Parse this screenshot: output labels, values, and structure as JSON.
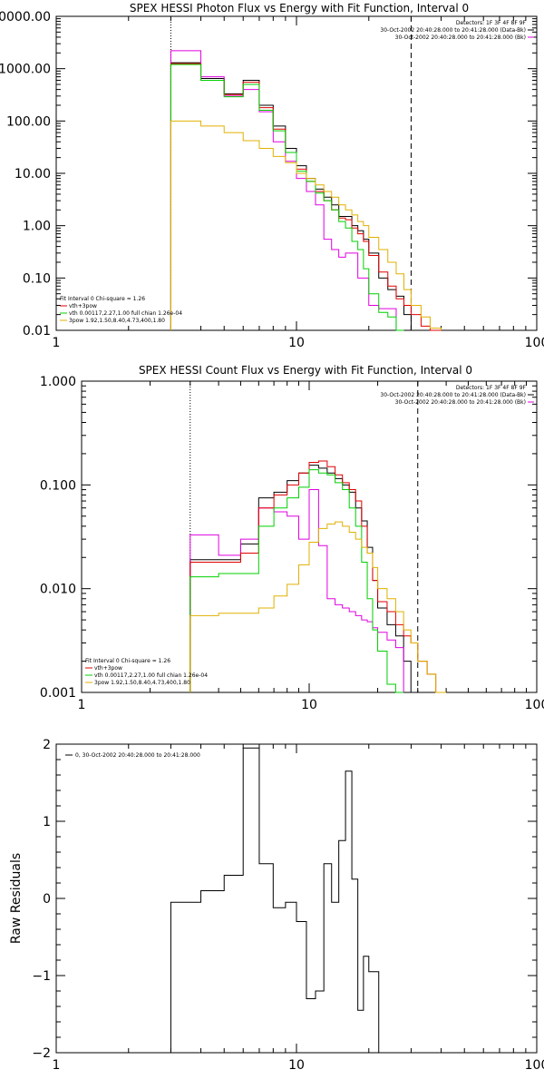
{
  "colors": {
    "black": "#000000",
    "red": "#e00000",
    "green": "#00d000",
    "magenta": "#e000e0",
    "yellow": "#e0b000"
  },
  "chart_data": [
    {
      "type": "line",
      "title": "SPEX HESSI Photon Flux vs Energy with Fit Function, Interval 0",
      "xscale": "log",
      "yscale": "log",
      "xlim": [
        1,
        100
      ],
      "ylim": [
        0.01,
        10000
      ],
      "x_ticks": [
        1,
        10,
        100
      ],
      "x_tick_labels": [
        "1",
        "10",
        "100"
      ],
      "y_ticks": [
        0.01,
        0.1,
        1,
        10,
        100,
        1000,
        10000
      ],
      "y_tick_labels": [
        "0.01",
        "0.10",
        "1.00",
        "10.00",
        "100.00",
        "1000.00",
        "10000.00"
      ],
      "ylabel": "",
      "xlabel": "",
      "fit_range_markers": [
        3,
        30
      ],
      "info_lines": [
        "Detectors: 1F 3F 4F 8F 9F",
        "30-Oct-2002 20:40:28.000 to 20:41:28.000 (Data-Bk)",
        "30-Oct-2002 20:40:28.000 to 20:41:28.000 (Bk)"
      ],
      "fit_lines": [
        "Fit Interval 0   Chi-square = 1.26",
        "vth+3pow",
        "vth 0.00117,2.27,1.00  full chian 1.26e-04",
        "3pow 1.92,1.50,8.40,4.73,400,1.80"
      ],
      "bin_edges": [
        3,
        4,
        5,
        6,
        7,
        8,
        9,
        10,
        11,
        12,
        13,
        14,
        15,
        16,
        17,
        18,
        19,
        20,
        22,
        24,
        26,
        28,
        30,
        33,
        36,
        40
      ],
      "series": [
        {
          "name": "Data-Bk",
          "color": "black",
          "values": [
            1300,
            650,
            330,
            600,
            200,
            80,
            30,
            14,
            8,
            5,
            3.5,
            2.5,
            1.5,
            1.5,
            1.0,
            0.8,
            0.55,
            0.3,
            0.1,
            0.06,
            0.045,
            0.02,
            0.008,
            null,
            null
          ]
        },
        {
          "name": "Bk",
          "color": "magenta",
          "values": [
            2200,
            700,
            300,
            400,
            150,
            40,
            17,
            8,
            4.5,
            2.5,
            0.55,
            0.35,
            0.25,
            0.3,
            0.3,
            0.1,
            0.1,
            0.03,
            0.026,
            0.026,
            null,
            null,
            null,
            null,
            null
          ]
        },
        {
          "name": "vth+3pow",
          "color": "red",
          "values": [
            1250,
            600,
            320,
            550,
            180,
            70,
            25,
            12,
            7,
            4.5,
            3,
            2,
            1.4,
            1.3,
            0.9,
            0.7,
            0.5,
            0.27,
            0.13,
            0.07,
            0.04,
            0.03,
            0.02,
            0.012,
            0.008
          ]
        },
        {
          "name": "vth 0.00117,2.27,1.00",
          "color": "green",
          "values": [
            1200,
            600,
            290,
            500,
            160,
            65,
            25,
            11,
            7,
            4.2,
            3,
            2,
            1.2,
            0.9,
            0.5,
            0.35,
            0.15,
            0.05,
            0.022,
            0.018,
            0.009,
            null,
            null,
            null,
            null
          ]
        },
        {
          "name": "3pow 1.92,1.50,8.40,4.73,400,1.80",
          "color": "yellow",
          "values": [
            100,
            80,
            60,
            42,
            30,
            21,
            16,
            10,
            8,
            6,
            4.5,
            3.5,
            2.5,
            2.0,
            1.6,
            1.2,
            1.0,
            0.6,
            0.35,
            0.2,
            0.12,
            0.06,
            0.03,
            0.018,
            0.011
          ]
        }
      ]
    },
    {
      "type": "line",
      "title": "SPEX HESSI Count Flux vs Energy with Fit Function, Interval 0",
      "xscale": "log",
      "yscale": "log",
      "xlim": [
        1,
        100
      ],
      "ylim": [
        0.001,
        1
      ],
      "x_ticks": [
        1,
        10,
        100
      ],
      "x_tick_labels": [
        "1",
        "10",
        "100"
      ],
      "y_ticks": [
        0.001,
        0.01,
        0.1,
        1
      ],
      "y_tick_labels": [
        "0.001",
        "0.010",
        "0.100",
        "1.000"
      ],
      "ylabel": "",
      "xlabel": "",
      "fit_range_markers": [
        3,
        30
      ],
      "info_lines": [
        "Detectors: 1F 3F 4F 8F 9F",
        "30-Oct-2002 20:40:28.000 to 20:41:28.000 (Data-Bk)",
        "30-Oct-2002 20:40:28.000 to 20:41:28.000 (Bk)"
      ],
      "fit_lines": [
        "Fit Interval 0   Chi-square = 1.26",
        "vth+3pow",
        "vth 0.00117,2.27,1.00  full chian 1.26e-04",
        "3pow 1.92,1.50,8.40,4.73,400,1.80"
      ],
      "bin_edges": [
        3,
        4,
        5,
        6,
        7,
        8,
        9,
        10,
        11,
        12,
        13,
        14,
        15,
        16,
        17,
        18,
        19,
        20,
        22,
        24,
        26,
        28,
        30,
        33,
        36,
        40
      ],
      "series": [
        {
          "name": "Data-Bk",
          "color": "black",
          "values": [
            0.019,
            0.019,
            0.027,
            0.075,
            0.085,
            0.11,
            0.13,
            0.155,
            0.145,
            0.13,
            0.115,
            0.1,
            0.085,
            0.06,
            0.045,
            0.025,
            0.012,
            0.0065,
            0.0045,
            0.0035,
            0.002,
            null,
            null,
            null,
            null
          ]
        },
        {
          "name": "Bk",
          "color": "magenta",
          "values": [
            0.033,
            0.021,
            0.03,
            0.06,
            0.055,
            0.05,
            0.03,
            0.09,
            0.026,
            0.008,
            0.007,
            0.0065,
            0.006,
            0.0055,
            0.005,
            0.0048,
            0.0042,
            0.0038,
            0.0032,
            0.0027,
            null,
            null,
            null,
            null,
            null
          ]
        },
        {
          "name": "vth+3pow",
          "color": "red",
          "values": [
            0.018,
            0.018,
            0.022,
            0.06,
            0.08,
            0.1,
            0.13,
            0.165,
            0.17,
            0.15,
            0.125,
            0.105,
            0.09,
            0.07,
            0.04,
            0.022,
            0.012,
            0.0075,
            0.006,
            0.0045,
            0.0035,
            0.003,
            0.002,
            0.0015,
            0.001
          ]
        },
        {
          "name": "vth 0.00117,2.27,1.00",
          "color": "green",
          "values": [
            0.013,
            0.014,
            0.014,
            0.04,
            0.06,
            0.075,
            0.095,
            0.14,
            0.13,
            0.125,
            0.105,
            0.09,
            0.06,
            0.04,
            0.018,
            0.008,
            0.004,
            0.0025,
            0.0012,
            0.0009,
            null,
            null,
            null,
            null,
            null
          ]
        },
        {
          "name": "3pow 1.92,1.50,8.40,4.73,400,1.80",
          "color": "yellow",
          "values": [
            0.0055,
            0.0058,
            0.0058,
            0.0065,
            0.0085,
            0.011,
            0.017,
            0.028,
            0.038,
            0.042,
            0.044,
            0.04,
            0.035,
            0.03,
            0.025,
            0.022,
            0.016,
            0.01,
            0.008,
            0.006,
            0.004,
            0.003,
            0.002,
            0.0015,
            0.001
          ]
        }
      ]
    },
    {
      "type": "line",
      "title": "",
      "xscale": "log",
      "yscale": "linear",
      "xlim": [
        1,
        100
      ],
      "ylim": [
        -2,
        2
      ],
      "x_ticks": [
        1,
        10,
        100
      ],
      "x_tick_labels": [
        "1",
        "10",
        "100"
      ],
      "y_ticks": [
        -2,
        -1,
        0,
        1,
        2
      ],
      "y_tick_labels": [
        "−2",
        "−1",
        "0",
        "1",
        "2"
      ],
      "ylabel": "Raw Residuals",
      "xlabel": "",
      "fit_range_markers": [],
      "info_lines": [],
      "fit_lines": [],
      "legend_text": "0, 30-Oct-2002 20:40:28.000 to 20:41:28.000",
      "bin_edges": [
        3,
        4,
        5,
        6,
        7,
        8,
        9,
        10,
        11,
        12,
        13,
        14,
        15,
        16,
        17,
        18,
        19,
        20,
        22,
        24,
        26,
        28,
        30
      ],
      "series": [
        {
          "name": "0, 30-Oct-2002 20:40:28.000 to 20:41:28.000",
          "color": "black",
          "values": [
            -0.05,
            0.1,
            0.3,
            1.95,
            0.45,
            -0.12,
            -0.05,
            -0.3,
            -1.3,
            -1.2,
            0.45,
            -0.05,
            0.75,
            1.65,
            0.25,
            -1.45,
            -0.75,
            -0.95
          ]
        }
      ]
    }
  ]
}
